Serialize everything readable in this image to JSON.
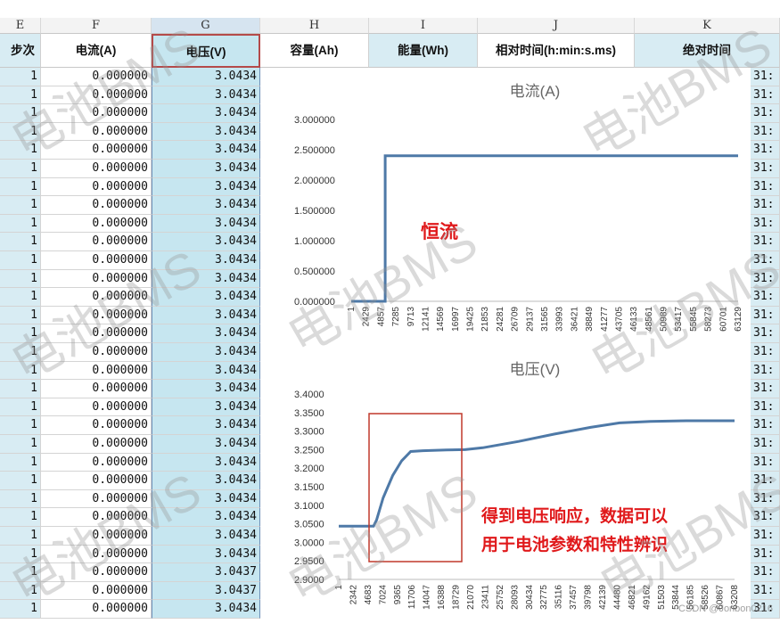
{
  "column_letters": [
    "E",
    "F",
    "G",
    "H",
    "I",
    "J",
    "K"
  ],
  "headers": {
    "e": "步次",
    "f": "电流(A)",
    "g": "电压(V)",
    "h": "容量(Ah)",
    "i": "能量(Wh)",
    "j": "相对时间(h:min:s.ms)",
    "k": "绝对时间"
  },
  "rows": [
    {
      "step": "1",
      "current": "0.000000",
      "voltage": "3.0434",
      "abs": "31:"
    },
    {
      "step": "1",
      "current": "0.000000",
      "voltage": "3.0434",
      "abs": "31:"
    },
    {
      "step": "1",
      "current": "0.000000",
      "voltage": "3.0434",
      "abs": "31:"
    },
    {
      "step": "1",
      "current": "0.000000",
      "voltage": "3.0434",
      "abs": "31:"
    },
    {
      "step": "1",
      "current": "0.000000",
      "voltage": "3.0434",
      "abs": "31:"
    },
    {
      "step": "1",
      "current": "0.000000",
      "voltage": "3.0434",
      "abs": "31:"
    },
    {
      "step": "1",
      "current": "0.000000",
      "voltage": "3.0434",
      "abs": "31:"
    },
    {
      "step": "1",
      "current": "0.000000",
      "voltage": "3.0434",
      "abs": "31:"
    },
    {
      "step": "1",
      "current": "0.000000",
      "voltage": "3.0434",
      "abs": "31:"
    },
    {
      "step": "1",
      "current": "0.000000",
      "voltage": "3.0434",
      "abs": "31:"
    },
    {
      "step": "1",
      "current": "0.000000",
      "voltage": "3.0434",
      "abs": "31:"
    },
    {
      "step": "1",
      "current": "0.000000",
      "voltage": "3.0434",
      "abs": "31:"
    },
    {
      "step": "1",
      "current": "0.000000",
      "voltage": "3.0434",
      "abs": "31:"
    },
    {
      "step": "1",
      "current": "0.000000",
      "voltage": "3.0434",
      "abs": "31:"
    },
    {
      "step": "1",
      "current": "0.000000",
      "voltage": "3.0434",
      "abs": "31:"
    },
    {
      "step": "1",
      "current": "0.000000",
      "voltage": "3.0434",
      "abs": "31:"
    },
    {
      "step": "1",
      "current": "0.000000",
      "voltage": "3.0434",
      "abs": "31:"
    },
    {
      "step": "1",
      "current": "0.000000",
      "voltage": "3.0434",
      "abs": "31:"
    },
    {
      "step": "1",
      "current": "0.000000",
      "voltage": "3.0434",
      "abs": "31:"
    },
    {
      "step": "1",
      "current": "0.000000",
      "voltage": "3.0434",
      "abs": "31:"
    },
    {
      "step": "1",
      "current": "0.000000",
      "voltage": "3.0434",
      "abs": "31:"
    },
    {
      "step": "1",
      "current": "0.000000",
      "voltage": "3.0434",
      "abs": "31:"
    },
    {
      "step": "1",
      "current": "0.000000",
      "voltage": "3.0434",
      "abs": "31:"
    },
    {
      "step": "1",
      "current": "0.000000",
      "voltage": "3.0434",
      "abs": "31:"
    },
    {
      "step": "1",
      "current": "0.000000",
      "voltage": "3.0434",
      "abs": "31:"
    },
    {
      "step": "1",
      "current": "0.000000",
      "voltage": "3.0434",
      "abs": "31:"
    },
    {
      "step": "1",
      "current": "0.000000",
      "voltage": "3.0434",
      "abs": "31:"
    },
    {
      "step": "1",
      "current": "0.000000",
      "voltage": "3.0437",
      "abs": "31:"
    },
    {
      "step": "1",
      "current": "0.000000",
      "voltage": "3.0437",
      "abs": "31:"
    },
    {
      "step": "1",
      "current": "0.000000",
      "voltage": "3.0434",
      "abs": "31:"
    }
  ],
  "watermark": "电池BMS",
  "credit": "CSDN @Jonbon0216",
  "annotations": {
    "current": "恒流",
    "voltage_line1": "得到电压响应，数据可以",
    "voltage_line2": "用于电池参数和特性辨识"
  },
  "colors": {
    "series": "#4e79a7",
    "annotation": "#e0191b",
    "highlight_box": "#c0392b"
  },
  "chart_data": [
    {
      "type": "line",
      "title": "电流(A)",
      "y_ticks": [
        "0.000000",
        "0.500000",
        "1.000000",
        "1.500000",
        "2.000000",
        "2.500000",
        "3.000000"
      ],
      "ylim": [
        0,
        3
      ],
      "x_ticks": [
        "1",
        "2429",
        "4857",
        "7285",
        "9713",
        "12141",
        "14569",
        "16997",
        "19425",
        "21853",
        "24281",
        "26709",
        "29137",
        "31565",
        "33993",
        "36421",
        "38849",
        "41277",
        "43705",
        "46133",
        "48561",
        "50989",
        "53417",
        "55845",
        "58273",
        "60701",
        "63129"
      ],
      "xlim": [
        1,
        66000
      ],
      "series": [
        {
          "values": [
            [
              1,
              0
            ],
            [
              5800,
              0
            ],
            [
              5800,
              2.4
            ],
            [
              66000,
              2.4
            ]
          ]
        }
      ]
    },
    {
      "type": "line",
      "title": "电压(V)",
      "y_ticks": [
        "2.9000",
        "2.9500",
        "3.0000",
        "3.0500",
        "3.1000",
        "3.1500",
        "3.2000",
        "3.2500",
        "3.3000",
        "3.3500",
        "3.4000"
      ],
      "ylim": [
        2.9,
        3.4
      ],
      "x_ticks": [
        "1",
        "2342",
        "4683",
        "7024",
        "9365",
        "11706",
        "14047",
        "16388",
        "18729",
        "21070",
        "23411",
        "25752",
        "28093",
        "30434",
        "32775",
        "35116",
        "37457",
        "39798",
        "42139",
        "44480",
        "46821",
        "49162",
        "51503",
        "53844",
        "56185",
        "58526",
        "60867",
        "63208"
      ],
      "xlim": [
        1,
        66000
      ],
      "series": [
        {
          "values": [
            [
              1,
              3.0434
            ],
            [
              5800,
              3.0434
            ],
            [
              6300,
              3.06
            ],
            [
              7400,
              3.12
            ],
            [
              9000,
              3.18
            ],
            [
              10500,
              3.22
            ],
            [
              12000,
              3.245
            ],
            [
              14000,
              3.247
            ],
            [
              18000,
              3.249
            ],
            [
              21070,
              3.25
            ],
            [
              24000,
              3.255
            ],
            [
              30000,
              3.272
            ],
            [
              36000,
              3.292
            ],
            [
              42000,
              3.31
            ],
            [
              46821,
              3.322
            ],
            [
              52000,
              3.326
            ],
            [
              58000,
              3.328
            ],
            [
              66000,
              3.328
            ]
          ]
        }
      ]
    }
  ]
}
